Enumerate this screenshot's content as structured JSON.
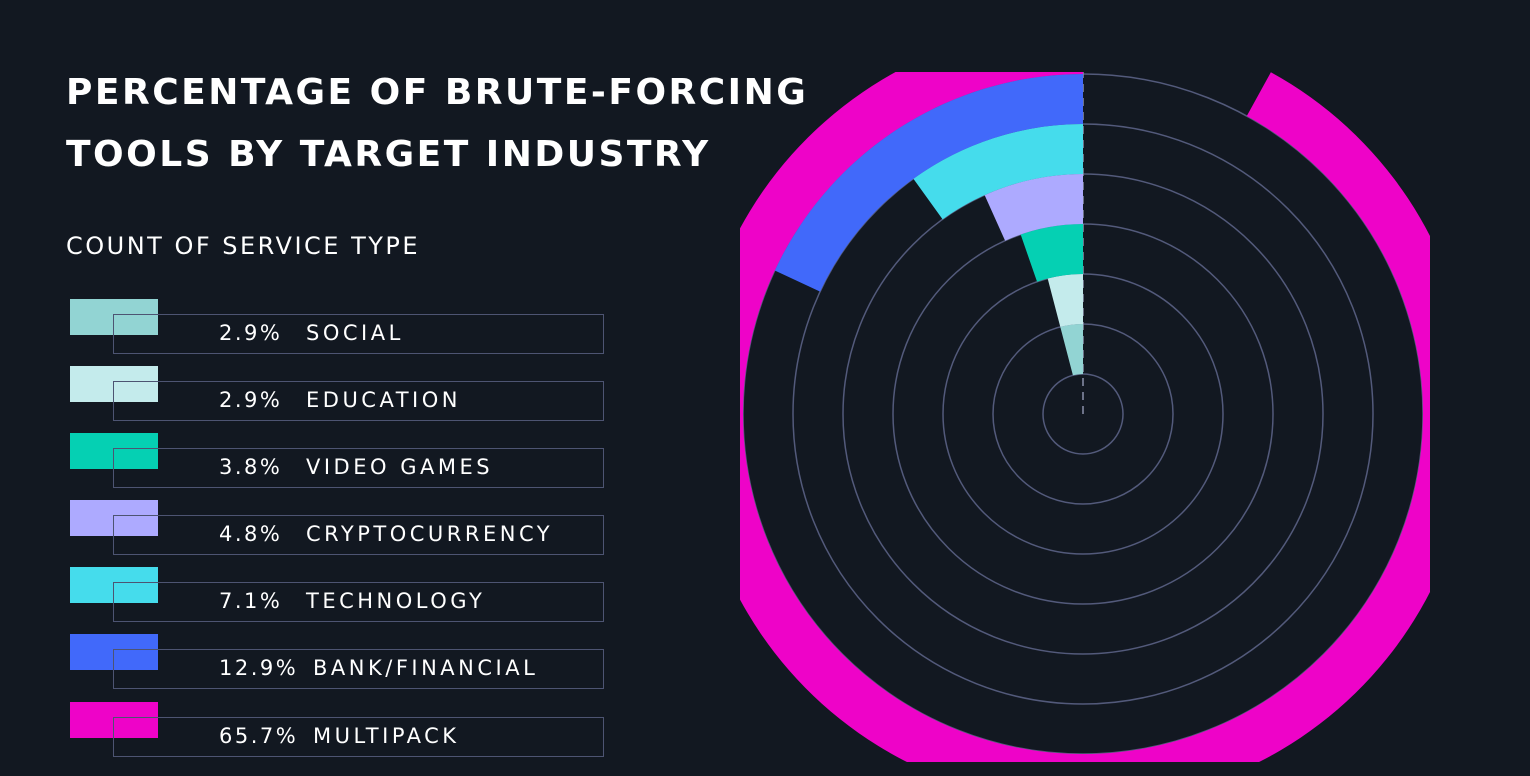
{
  "chart_data": {
    "type": "radial-bar",
    "title_lines": [
      "PERCENTAGE OF BRUTE-FORCING",
      "TOOLS BY TARGET INDUSTRY"
    ],
    "subtitle": "COUNT OF SERVICE TYPE",
    "unit": "%",
    "grid": true,
    "legend": "left",
    "series": [
      {
        "label": "SOCIAL",
        "value": 2.9,
        "pct_text": "2.9%",
        "color": "#92d4d3"
      },
      {
        "label": "EDUCATION",
        "value": 2.9,
        "pct_text": "2.9%",
        "color": "#c4ebec"
      },
      {
        "label": "VIDEO GAMES",
        "value": 3.8,
        "pct_text": "3.8%",
        "color": "#05d0b3"
      },
      {
        "label": "CRYPTOCURRENCY",
        "value": 4.8,
        "pct_text": "4.8%",
        "color": "#adaaff"
      },
      {
        "label": "TECHNOLOGY",
        "value": 7.1,
        "pct_text": "7.1%",
        "color": "#45dcec"
      },
      {
        "label": "BANK/FINANCIAL",
        "value": 12.9,
        "pct_text": "12.9%",
        "color": "#4169fa"
      },
      {
        "label": "MULTIPACK",
        "value": 65.7,
        "pct_text": "65.7%",
        "color": "#ee03c8"
      }
    ]
  }
}
